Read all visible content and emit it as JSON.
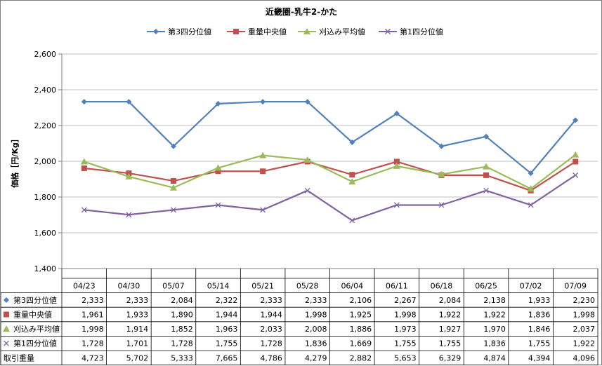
{
  "chart_data": {
    "type": "line",
    "title": "近畿圏-乳牛2-かた",
    "ylabel": "価格［円/Kg］",
    "ylim": [
      1400,
      2600
    ],
    "yticks": [
      "1,400",
      "1,600",
      "1,800",
      "2,000",
      "2,200",
      "2,400",
      "2,600"
    ],
    "ytick_values": [
      1400,
      1600,
      1800,
      2000,
      2200,
      2400,
      2600
    ],
    "grid": true,
    "legend_position": "top",
    "categories": [
      "04/23",
      "04/30",
      "05/07",
      "05/14",
      "05/21",
      "05/28",
      "06/04",
      "06/11",
      "06/18",
      "06/25",
      "07/02",
      "07/09"
    ],
    "series": [
      {
        "name": "第3四分位値",
        "color": "#4f81bd",
        "marker": "diamond",
        "values": [
          2333,
          2333,
          2084,
          2322,
          2333,
          2333,
          2106,
          2267,
          2084,
          2138,
          1933,
          2230
        ],
        "labels": [
          "2,333",
          "2,333",
          "2,084",
          "2,322",
          "2,333",
          "2,333",
          "2,106",
          "2,267",
          "2,084",
          "2,138",
          "1,933",
          "2,230"
        ]
      },
      {
        "name": "重量中央値",
        "color": "#c0504d",
        "marker": "square",
        "values": [
          1961,
          1933,
          1890,
          1944,
          1944,
          1998,
          1925,
          1998,
          1922,
          1922,
          1836,
          1998
        ],
        "labels": [
          "1,961",
          "1,933",
          "1,890",
          "1,944",
          "1,944",
          "1,998",
          "1,925",
          "1,998",
          "1,922",
          "1,922",
          "1,836",
          "1,998"
        ]
      },
      {
        "name": "刈込み平均値",
        "color": "#9bbb59",
        "marker": "triangle",
        "values": [
          1998,
          1914,
          1852,
          1963,
          2033,
          2008,
          1886,
          1973,
          1927,
          1970,
          1846,
          2037
        ],
        "labels": [
          "1,998",
          "1,914",
          "1,852",
          "1,963",
          "2,033",
          "2,008",
          "1,886",
          "1,973",
          "1,927",
          "1,970",
          "1,846",
          "2,037"
        ]
      },
      {
        "name": "第1四分位値",
        "color": "#8064a2",
        "marker": "x",
        "values": [
          1728,
          1701,
          1728,
          1755,
          1728,
          1836,
          1669,
          1755,
          1755,
          1836,
          1755,
          1922
        ],
        "labels": [
          "1,728",
          "1,701",
          "1,728",
          "1,755",
          "1,728",
          "1,836",
          "1,669",
          "1,755",
          "1,755",
          "1,836",
          "1,755",
          "1,922"
        ]
      }
    ],
    "extra_row": {
      "name": "取引重量",
      "labels": [
        "4,723",
        "5,702",
        "5,333",
        "7,665",
        "4,786",
        "4,279",
        "2,882",
        "5,653",
        "6,329",
        "4,874",
        "4,394",
        "4,096"
      ]
    }
  }
}
